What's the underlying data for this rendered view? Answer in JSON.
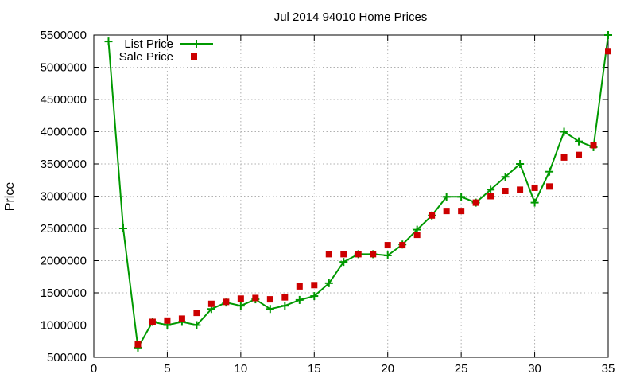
{
  "chart_data": {
    "type": "line",
    "title": "Jul 2014 94010 Home Prices",
    "xlabel": "",
    "ylabel": "Price",
    "xlim": [
      0,
      35
    ],
    "ylim": [
      500000,
      5500000
    ],
    "xticks": [
      0,
      5,
      10,
      15,
      20,
      25,
      30,
      35
    ],
    "yticks": [
      500000,
      1000000,
      1500000,
      2000000,
      2500000,
      3000000,
      3500000,
      4000000,
      4500000,
      5000000,
      5500000
    ],
    "grid": true,
    "legend": "top-left",
    "series": [
      {
        "name": "List Price",
        "style": "line+plus",
        "color": "#009900",
        "x": [
          1,
          2,
          3,
          4,
          5,
          6,
          7,
          8,
          9,
          10,
          11,
          12,
          13,
          14,
          15,
          16,
          17,
          18,
          19,
          20,
          21,
          22,
          23,
          24,
          25,
          26,
          27,
          28,
          29,
          30,
          31,
          32,
          33,
          34,
          35
        ],
        "y": [
          5400000,
          2500000,
          650000,
          1050000,
          1000000,
          1050000,
          1000000,
          1250000,
          1350000,
          1300000,
          1400000,
          1250000,
          1300000,
          1390000,
          1450000,
          1650000,
          1980000,
          2100000,
          2100000,
          2080000,
          2250000,
          2480000,
          2700000,
          2990000,
          2990000,
          2900000,
          3100000,
          3300000,
          3500000,
          2900000,
          3380000,
          4000000,
          3850000,
          3760000,
          5500000
        ]
      },
      {
        "name": "Sale Price",
        "style": "square-markers",
        "color": "#cc0000",
        "x": [
          3,
          4,
          5,
          6,
          7,
          8,
          9,
          10,
          11,
          12,
          13,
          14,
          15,
          16,
          17,
          18,
          19,
          20,
          21,
          22,
          23,
          24,
          25,
          26,
          27,
          28,
          29,
          30,
          31,
          32,
          33,
          34,
          35
        ],
        "y": [
          700000,
          1050000,
          1070000,
          1100000,
          1190000,
          1330000,
          1360000,
          1410000,
          1420000,
          1400000,
          1430000,
          1600000,
          1620000,
          2100000,
          2100000,
          2100000,
          2100000,
          2240000,
          2240000,
          2400000,
          2700000,
          2770000,
          2770000,
          2900000,
          3000000,
          3080000,
          3100000,
          3130000,
          3150000,
          3600000,
          3640000,
          3790000,
          5250000
        ]
      }
    ]
  }
}
